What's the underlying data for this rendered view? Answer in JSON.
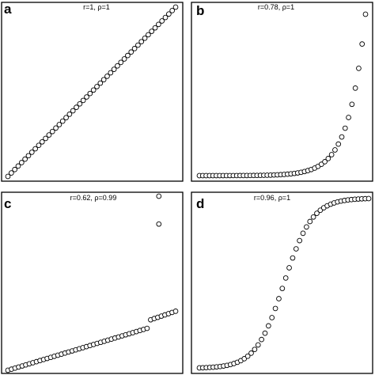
{
  "chart_data": [
    {
      "id": "a",
      "type": "scatter",
      "panel_label": "a",
      "annotation": "r=1, ρ=1",
      "curve": "linear",
      "n_points": 50,
      "xlim": [
        0,
        1
      ],
      "ylim": [
        0,
        1
      ],
      "grid": false,
      "axes_labels_shown": false
    },
    {
      "id": "b",
      "type": "scatter",
      "panel_label": "b",
      "annotation": "r=0.78, ρ=1",
      "curve": "exponential",
      "n_points": 50,
      "xlim": [
        0,
        1
      ],
      "ylim": [
        0,
        1
      ],
      "grid": false,
      "axes_labels_shown": false
    },
    {
      "id": "c",
      "type": "scatter",
      "panel_label": "c",
      "annotation": "r=0.62, ρ=0.99",
      "curve": "linear-with-outliers",
      "n_points": 50,
      "xlim": [
        0,
        1
      ],
      "ylim": [
        0,
        1
      ],
      "grid": false,
      "axes_labels_shown": false
    },
    {
      "id": "d",
      "type": "scatter",
      "panel_label": "d",
      "annotation": "r=0.96, ρ=1",
      "curve": "sigmoid",
      "n_points": 50,
      "xlim": [
        0,
        1
      ],
      "ylim": [
        0,
        1
      ],
      "grid": false,
      "axes_labels_shown": false
    }
  ]
}
